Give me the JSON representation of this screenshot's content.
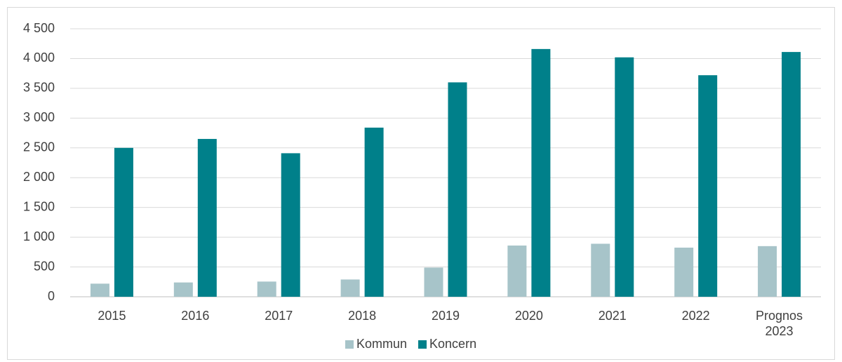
{
  "chart_data": {
    "type": "bar",
    "categories": [
      "2015",
      "2016",
      "2017",
      "2018",
      "2019",
      "2020",
      "2021",
      "2022",
      "Prognos 2023"
    ],
    "series": [
      {
        "name": "Kommun",
        "color": "#a7c4c9",
        "values": [
          220,
          240,
          255,
          290,
          490,
          860,
          890,
          825,
          850
        ]
      },
      {
        "name": "Koncern",
        "color": "#00808a",
        "values": [
          2500,
          2650,
          2410,
          2840,
          3600,
          4160,
          4020,
          3720,
          4110
        ]
      }
    ],
    "ylim": [
      0,
      4500
    ],
    "yticks": [
      0,
      500,
      {
        "value": 1000,
        "label": "1 000"
      },
      {
        "value": 1500,
        "label": "1 500"
      },
      {
        "value": 2000,
        "label": "2 000"
      },
      {
        "value": 2500,
        "label": "2 500"
      },
      {
        "value": 3000,
        "label": "3 000"
      },
      {
        "value": 3500,
        "label": "3 500"
      },
      {
        "value": 4000,
        "label": "4 000"
      },
      {
        "value": 4500,
        "label": "4 500"
      }
    ],
    "grid": true,
    "legend": "bottom"
  }
}
